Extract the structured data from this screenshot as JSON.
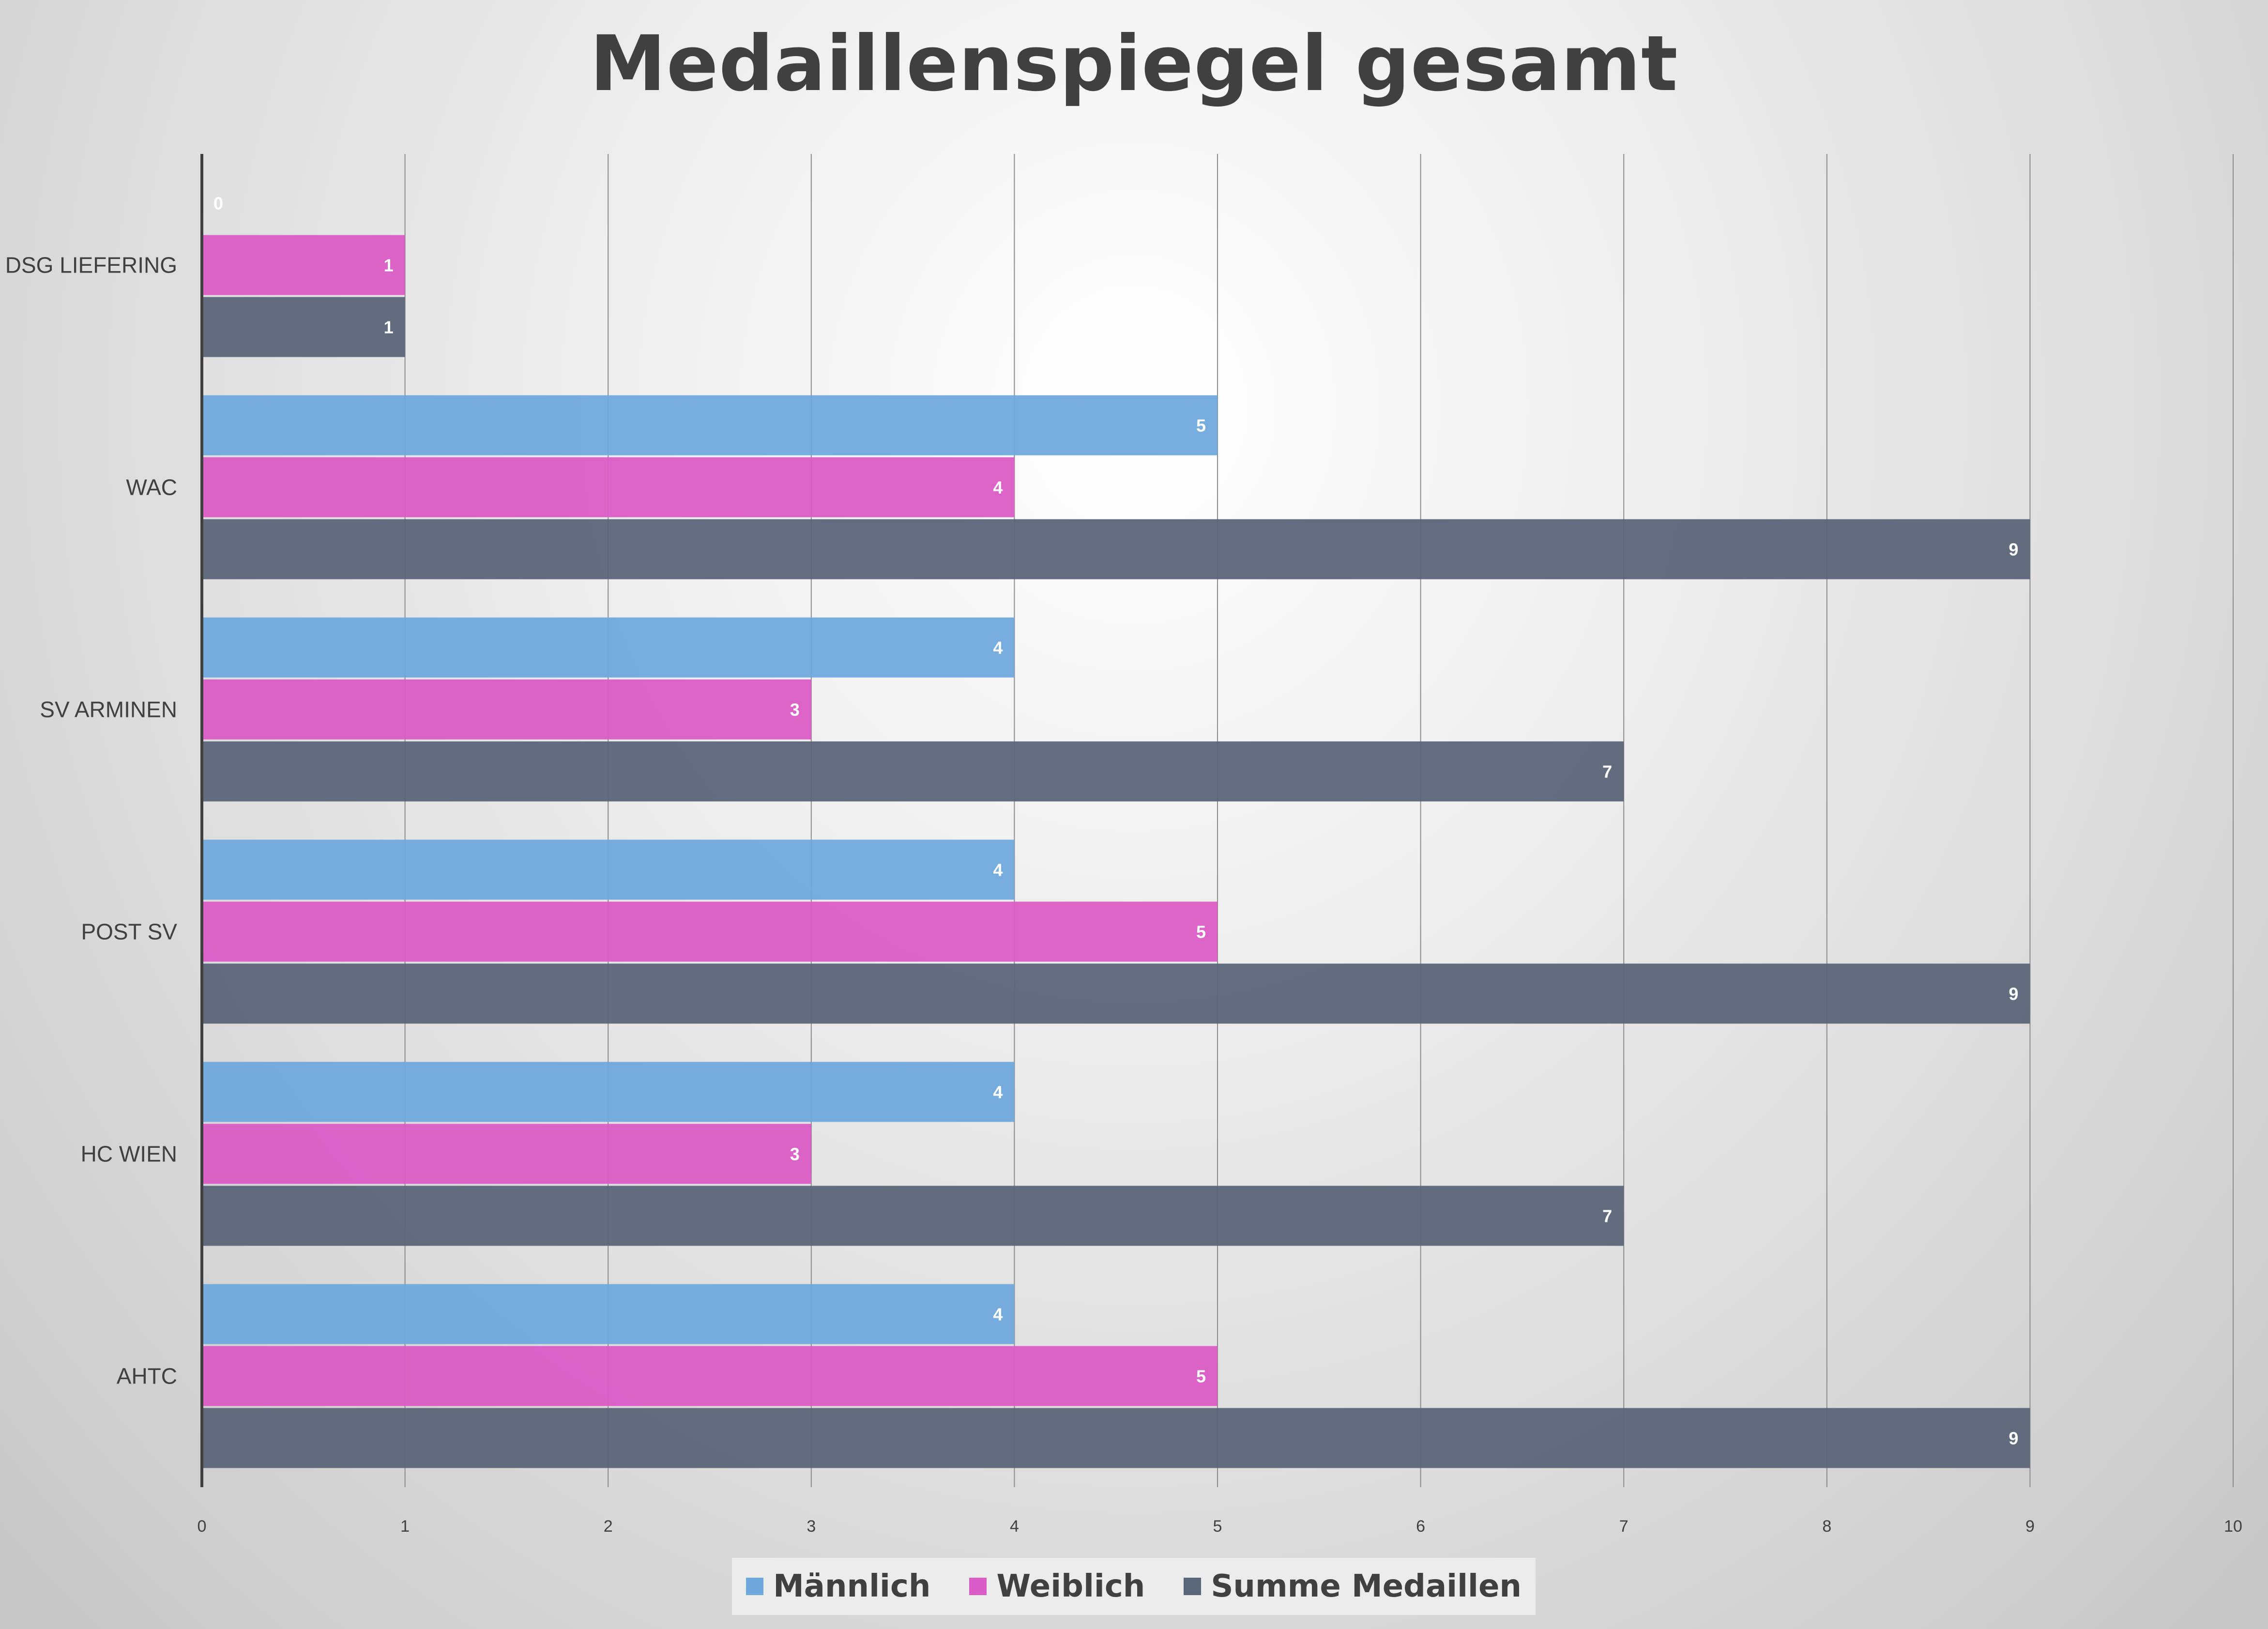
{
  "chart_data": {
    "type": "bar",
    "orientation": "horizontal",
    "title": "Medaillenspiegel gesamt",
    "categories": [
      "DSG LIEFERING",
      "WAC",
      "SV ARMINEN",
      "POST SV",
      "HC WIEN",
      "AHTC"
    ],
    "series": [
      {
        "name": "Männlich",
        "color": "#6FA8DC",
        "values": [
          0,
          5,
          4,
          4,
          4,
          4
        ]
      },
      {
        "name": "Weiblich",
        "color": "#DA5CC6",
        "values": [
          1,
          4,
          3,
          5,
          3,
          5
        ]
      },
      {
        "name": "Summe Medaillen",
        "color": "#5A6679",
        "values": [
          1,
          9,
          7,
          9,
          7,
          9
        ]
      }
    ],
    "xlim": [
      0,
      10
    ],
    "x_ticks": [
      "0",
      "1",
      "2",
      "3",
      "4",
      "5",
      "6",
      "7",
      "8",
      "9",
      "10"
    ],
    "grid": "vertical",
    "legend_position": "bottom",
    "data_labels": true
  }
}
